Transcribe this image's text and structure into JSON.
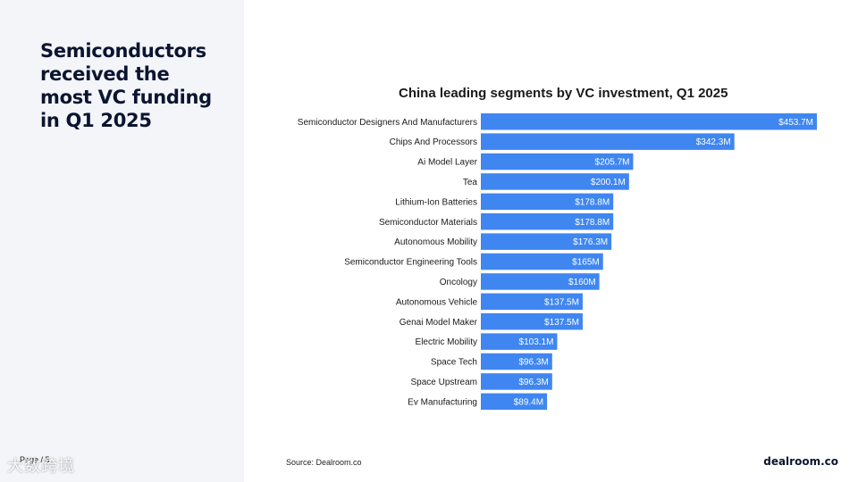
{
  "headline": "Semiconductors received the most VC funding in Q1 2025",
  "page_label": "Page / 5",
  "watermark": "大数跨境",
  "source": "Source:  Dealroom.co",
  "brand": "dealroom.co",
  "colors": {
    "bar": "#3f86f0",
    "left_panel": "#f3f5f9",
    "text": "#0b1530"
  },
  "chart_data": {
    "type": "bar",
    "orientation": "horizontal",
    "title": "China leading segments by VC investment, Q1 2025",
    "xlabel": "",
    "ylabel": "",
    "unit": "$M",
    "grid": false,
    "legend": "none",
    "categories": [
      "Semiconductor Designers And Manufacturers",
      "Chips And Processors",
      "Ai Model Layer",
      "Tea",
      "Lithium-Ion Batteries",
      "Semiconductor Materials",
      "Autonomous Mobility",
      "Semiconductor Engineering Tools",
      "Oncology",
      "Autonomous Vehicle",
      "Genai Model Maker",
      "Electric Mobility",
      "Space Tech",
      "Space Upstream",
      "Ev Manufacturing"
    ],
    "values": [
      453.7,
      342.3,
      205.7,
      200.1,
      178.8,
      178.8,
      176.3,
      165,
      160,
      137.5,
      137.5,
      103.1,
      96.3,
      96.3,
      89.4
    ],
    "data_labels": [
      "$453.7M",
      "$342.3M",
      "$205.7M",
      "$200.1M",
      "$178.8M",
      "$178.8M",
      "$176.3M",
      "$165M",
      "$160M",
      "$137.5M",
      "$137.5M",
      "$103.1M",
      "$96.3M",
      "$96.3M",
      "$89.4M"
    ]
  }
}
